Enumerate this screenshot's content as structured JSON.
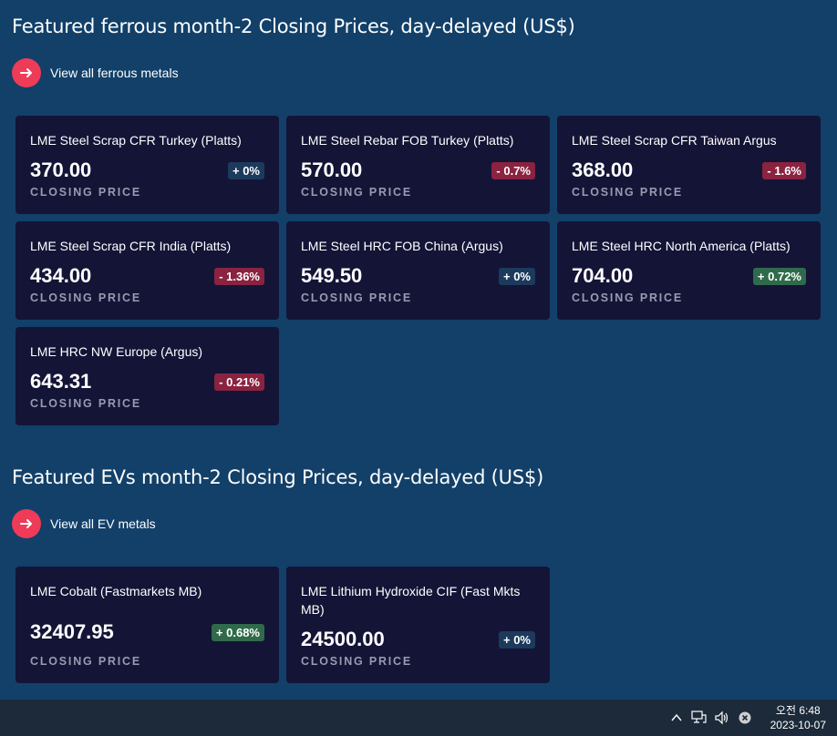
{
  "colors": {
    "background": "#124069",
    "card": "#141437",
    "accent": "#ee3b57",
    "badge_down": "#8a2340",
    "badge_up": "#2f6b4a",
    "badge_neutral": "#1c3a5c"
  },
  "ferrous": {
    "title": "Featured ferrous month-2 Closing Prices, day-delayed (US$)",
    "link_label": "View all ferrous metals",
    "link_icon": "arrow-right-icon",
    "cards": [
      {
        "name": "LME Steel Scrap CFR Turkey (Platts)",
        "price": "370.00",
        "change": "+ 0%",
        "trend": "neutral",
        "label": "CLOSING PRICE"
      },
      {
        "name": "LME Steel Rebar FOB Turkey (Platts)",
        "price": "570.00",
        "change": "- 0.7%",
        "trend": "down",
        "label": "CLOSING PRICE"
      },
      {
        "name": "LME Steel Scrap CFR Taiwan Argus",
        "price": "368.00",
        "change": "- 1.6%",
        "trend": "down",
        "label": "CLOSING PRICE"
      },
      {
        "name": "LME Steel Scrap CFR India (Platts)",
        "price": "434.00",
        "change": "- 1.36%",
        "trend": "down",
        "label": "CLOSING PRICE"
      },
      {
        "name": "LME Steel HRC FOB China (Argus)",
        "price": "549.50",
        "change": "+ 0%",
        "trend": "neutral",
        "label": "CLOSING PRICE"
      },
      {
        "name": "LME Steel HRC North America (Platts)",
        "price": "704.00",
        "change": "+ 0.72%",
        "trend": "up",
        "label": "CLOSING PRICE"
      },
      {
        "name": "LME HRC NW Europe (Argus)",
        "price": "643.31",
        "change": "- 0.21%",
        "trend": "down",
        "label": "CLOSING PRICE"
      }
    ]
  },
  "ev": {
    "title": "Featured EVs month-2 Closing Prices, day-delayed (US$)",
    "link_label": "View all EV metals",
    "link_icon": "arrow-right-icon",
    "cards": [
      {
        "name": "LME Cobalt (Fastmarkets MB)",
        "price": "32407.95",
        "change": "+ 0.68%",
        "trend": "up",
        "label": "CLOSING PRICE"
      },
      {
        "name": "LME Lithium Hydroxide CIF (Fast Mkts MB)",
        "price": "24500.00",
        "change": "+ 0%",
        "trend": "neutral",
        "label": "CLOSING PRICE"
      }
    ]
  },
  "taskbar": {
    "icons": [
      "chevron-up-icon",
      "network-icon",
      "volume-icon",
      "close-circle-icon"
    ],
    "time": "오전 6:48",
    "date": "2023-10-07"
  }
}
